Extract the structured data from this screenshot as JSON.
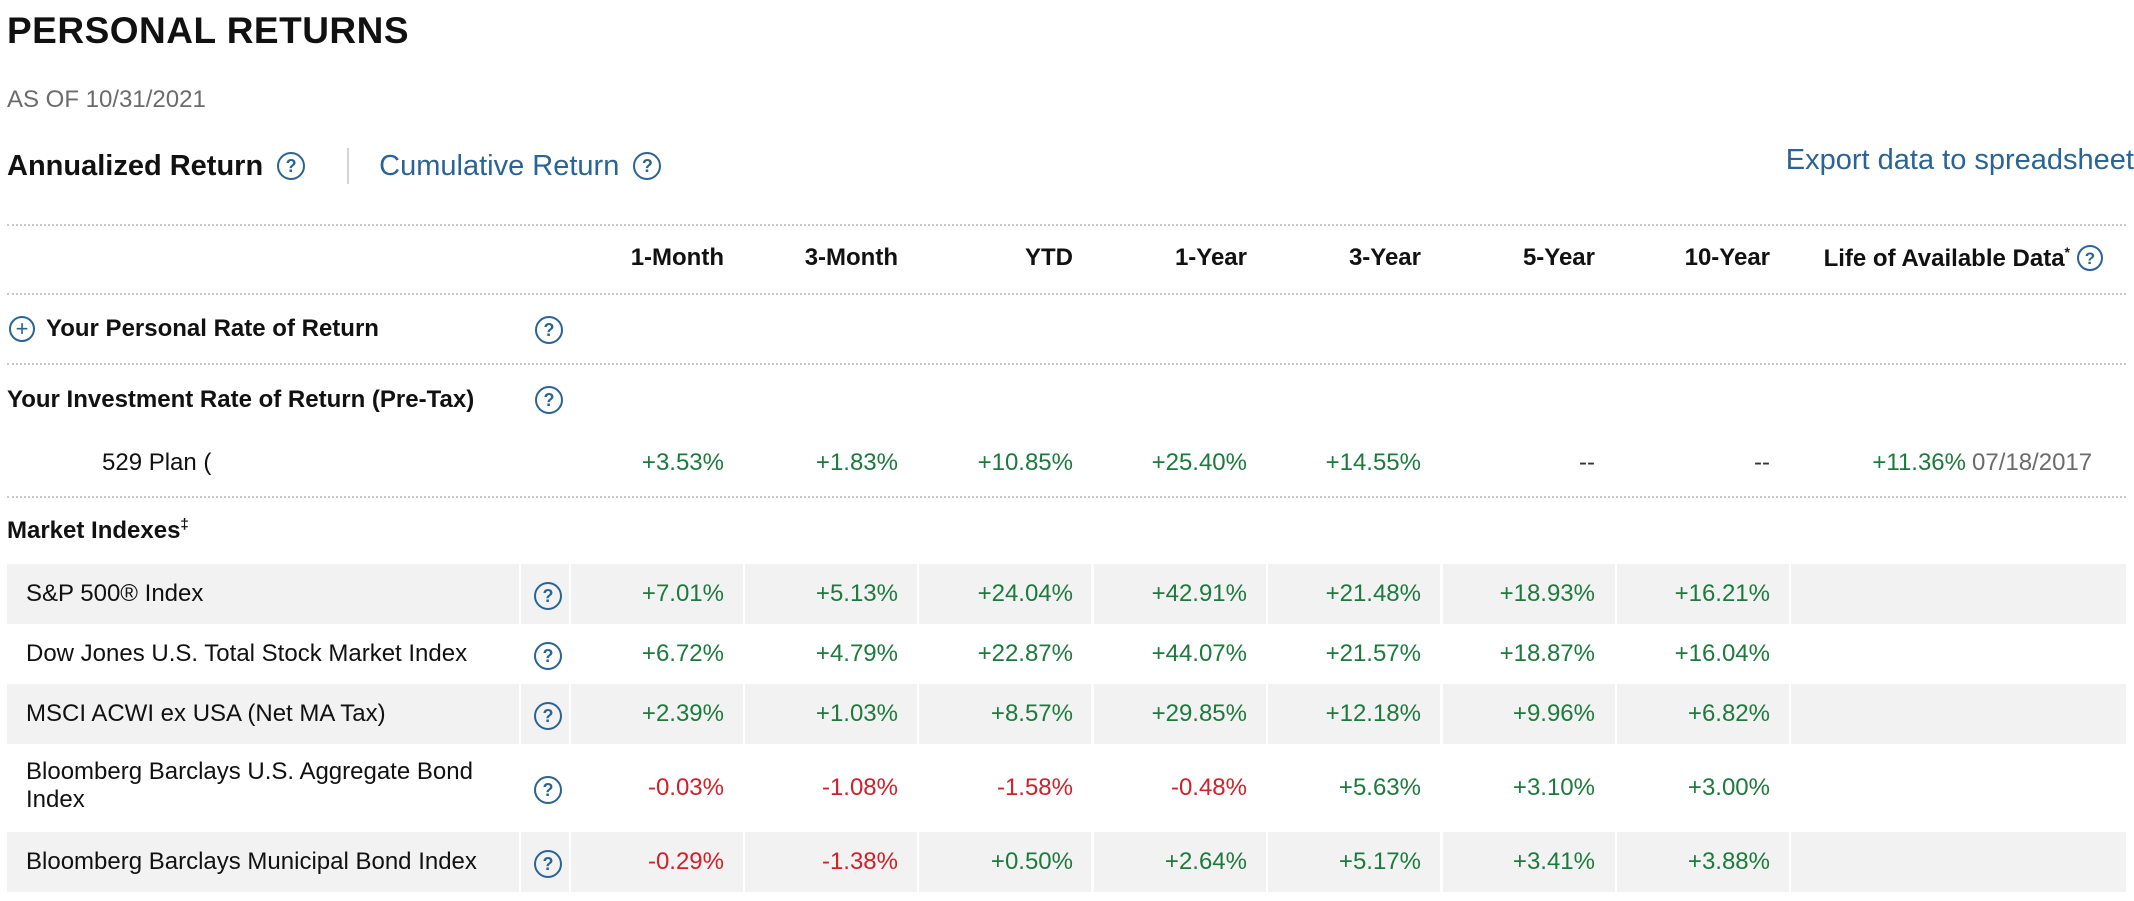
{
  "title": "PERSONAL RETURNS",
  "as_of": "AS OF 10/31/2021",
  "tabs": {
    "annualized": "Annualized Return",
    "cumulative": "Cumulative Return"
  },
  "export_label": "Export data to spreadsheet",
  "columns": [
    "1-Month",
    "3-Month",
    "YTD",
    "1-Year",
    "3-Year",
    "5-Year",
    "10-Year",
    "Life of Available Data"
  ],
  "life_marker": "*",
  "personal_rate": {
    "label": "Your Personal Rate of Return"
  },
  "investment_rate": {
    "label": "Your Investment Rate of Return (Pre-Tax)",
    "plan": {
      "name": "529 Plan (",
      "values": [
        "+3.53%",
        "+1.83%",
        "+10.85%",
        "+25.40%",
        "+14.55%",
        "--",
        "--",
        "+11.36%"
      ],
      "life_date": "07/18/2017"
    }
  },
  "market_indexes": {
    "label": "Market Indexes",
    "marker": "‡",
    "rows": [
      {
        "name": "S&P 500® Index",
        "values": [
          "+7.01%",
          "+5.13%",
          "+24.04%",
          "+42.91%",
          "+21.48%",
          "+18.93%",
          "+16.21%"
        ]
      },
      {
        "name": "Dow Jones U.S. Total Stock Market Index",
        "values": [
          "+6.72%",
          "+4.79%",
          "+22.87%",
          "+44.07%",
          "+21.57%",
          "+18.87%",
          "+16.04%"
        ]
      },
      {
        "name": "MSCI ACWI ex USA (Net MA Tax)",
        "values": [
          "+2.39%",
          "+1.03%",
          "+8.57%",
          "+29.85%",
          "+12.18%",
          "+9.96%",
          "+6.82%"
        ]
      },
      {
        "name": "Bloomberg Barclays U.S. Aggregate Bond Index",
        "values": [
          "-0.03%",
          "-1.08%",
          "-1.58%",
          "-0.48%",
          "+5.63%",
          "+3.10%",
          "+3.00%"
        ]
      },
      {
        "name": "Bloomberg Barclays Municipal Bond Index",
        "values": [
          "-0.29%",
          "-1.38%",
          "+0.50%",
          "+2.64%",
          "+5.17%",
          "+3.41%",
          "+3.88%"
        ]
      }
    ]
  },
  "colors": {
    "link": "#2a6496",
    "positive": "#1d7a3d",
    "negative": "#d0202a",
    "row_shade": "#f2f2f2"
  },
  "icons": {
    "help": "question-circle-icon",
    "expand": "plus-circle-icon"
  }
}
